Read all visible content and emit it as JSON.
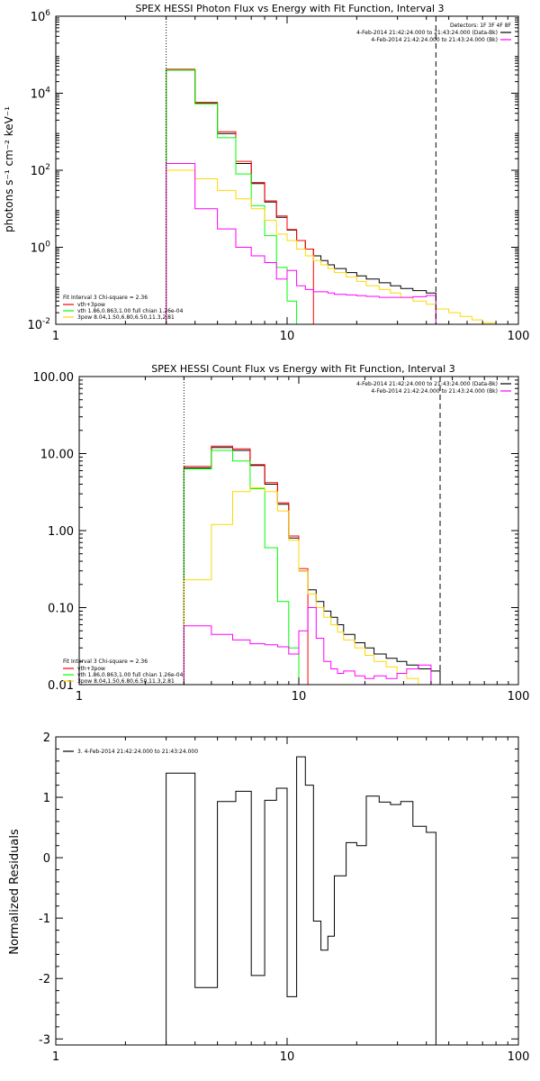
{
  "chart_data": [
    {
      "type": "line",
      "title": "SPEX HESSI Photon Flux vs Energy with Fit Function, Interval 3",
      "ylabel": "photons s⁻¹ cm⁻² keV⁻¹",
      "xlabel": "",
      "xscale": "log",
      "yscale": "log",
      "xlim": [
        1,
        100
      ],
      "ylim": [
        0.01,
        1000000
      ],
      "x_ticks": [
        "1",
        "10",
        "100"
      ],
      "y_ticks": [
        {
          "v": 0.01,
          "base": "10",
          "exp": "-2"
        },
        {
          "v": 1,
          "base": "10",
          "exp": "0"
        },
        {
          "v": 100,
          "base": "10",
          "exp": "2"
        },
        {
          "v": 10000,
          "base": "10",
          "exp": "4"
        },
        {
          "v": 1000000,
          "base": "10",
          "exp": "6"
        }
      ],
      "vlines": [
        {
          "x": 3,
          "style": "dotted"
        },
        {
          "x": 44,
          "style": "dashed"
        }
      ],
      "legend_topright": {
        "header": "Detectors: 1F 3F 4F 8F",
        "entries": [
          {
            "label": "4-Feb-2014 21:42:24.000 to 21:43:24.000 (Data-Bk)",
            "color": "#000000"
          },
          {
            "label": "4-Feb-2014 21:42:24.000 to 21:43:24.000 (Bk)",
            "color": "#ff00ff"
          }
        ]
      },
      "legend_bottomleft": {
        "header": "Fit Interval 3   Chi-square = 2.36",
        "entries": [
          {
            "label": "vth+3pow",
            "color": "#ff0000"
          },
          {
            "label": "vth 1.86,0.863,1.00  full chian 1.26e-04",
            "color": "#00ff00"
          },
          {
            "label": "3pow 8.04,1.50,6.80,6.50,11.3,2.81",
            "color": "#ffd700"
          }
        ]
      },
      "edges": [
        3,
        4,
        5,
        6,
        7,
        8,
        9,
        10,
        11,
        12,
        13,
        14,
        15,
        16,
        18,
        20,
        22,
        25,
        28,
        31,
        35,
        40,
        44,
        50,
        56,
        63,
        70,
        80
      ],
      "series": [
        {
          "name": "Data-Bk",
          "color": "#000000",
          "values": [
            40000,
            5500,
            900,
            150,
            45,
            15,
            6,
            2.8,
            1.5,
            0.9,
            0.6,
            0.45,
            0.35,
            0.28,
            0.22,
            0.18,
            0.15,
            0.12,
            0.1,
            0.085,
            0.075,
            0.065
          ]
        },
        {
          "name": "vth+3pow",
          "color": "#ff0000",
          "values": [
            42000,
            5800,
            1000,
            170,
            48,
            16,
            6.5,
            2.9,
            1.5,
            0.9
          ]
        },
        {
          "name": "vth",
          "color": "#00ff00",
          "values": [
            40000,
            5300,
            700,
            80,
            12,
            2,
            0.3,
            0.04
          ]
        },
        {
          "name": "3pow",
          "color": "#ffd700",
          "values": [
            100,
            60,
            30,
            18,
            10,
            5,
            2.2,
            1.5,
            0.9,
            0.6,
            0.45,
            0.35,
            0.28,
            0.22,
            0.17,
            0.13,
            0.1,
            0.08,
            0.065,
            0.05,
            0.04,
            0.033,
            0.025,
            0.02,
            0.016,
            0.013,
            0.011
          ]
        },
        {
          "name": "Bk",
          "color": "#ff00ff",
          "values": [
            150,
            10,
            3,
            1,
            0.6,
            0.4,
            0.15,
            0.25,
            0.1,
            0.08,
            0.07,
            0.07,
            0.065,
            0.06,
            0.058,
            0.055,
            0.053,
            0.05,
            0.05,
            0.05,
            0.052,
            0.056
          ]
        }
      ]
    },
    {
      "type": "line",
      "title": "SPEX HESSI Count Flux vs Energy with Fit Function, Interval 3",
      "ylabel": "",
      "xlabel": "",
      "xscale": "log",
      "yscale": "log",
      "xlim": [
        1,
        100
      ],
      "ylim": [
        0.01,
        100
      ],
      "x_ticks": [
        "1",
        "10",
        "100"
      ],
      "y_ticks": [
        {
          "v": 0.01,
          "label": "0.01"
        },
        {
          "v": 0.1,
          "label": "0.10"
        },
        {
          "v": 1,
          "label": "1.00"
        },
        {
          "v": 10,
          "label": "10.00"
        },
        {
          "v": 100,
          "label": "100.00"
        }
      ],
      "vlines": [
        {
          "x": 3,
          "style": "dotted"
        },
        {
          "x": 44,
          "style": "dashed"
        }
      ],
      "legend_topright": {
        "header": "",
        "entries": [
          {
            "label": "4-Feb-2014 21:42:24.000 to 21:43:24.000 (Data-Bk)",
            "color": "#000000"
          },
          {
            "label": "4-Feb-2014 21:42:24.000 to 21:43:24.000 (Bk)",
            "color": "#ff00ff"
          }
        ]
      },
      "legend_bottomleft": {
        "header": "Fit Interval 3   Chi-square = 2.36",
        "entries": [
          {
            "label": "vth+3pow",
            "color": "#ff0000"
          },
          {
            "label": "vth 1.86,0.863,1.00  full chian 1.26e-04",
            "color": "#00ff00"
          },
          {
            "label": "3pow 8.04,1.50,6.80,6.50,11.3,2.81",
            "color": "#ffd700"
          }
        ]
      },
      "edges": [
        3,
        4,
        5,
        6,
        7,
        8,
        9,
        10,
        11,
        12,
        13,
        14,
        15,
        16,
        18,
        20,
        22,
        25,
        28,
        31,
        35,
        40,
        44,
        50
      ],
      "series": [
        {
          "name": "Data-Bk",
          "color": "#000000",
          "values": [
            6.5,
            12,
            11,
            7,
            4,
            2.2,
            0.8,
            0.3,
            0.17,
            0.12,
            0.09,
            0.075,
            0.06,
            0.045,
            0.035,
            0.03,
            0.025,
            0.022,
            0.02,
            0.018,
            0.016,
            0.015
          ]
        },
        {
          "name": "vth+3pow",
          "color": "#ff0000",
          "values": [
            6.8,
            12.5,
            11.5,
            7.2,
            4.2,
            2.3,
            0.85,
            0.32
          ]
        },
        {
          "name": "vth",
          "color": "#00ff00",
          "values": [
            6.3,
            11,
            8,
            3.5,
            0.6,
            0.12,
            0.03,
            0.008
          ]
        },
        {
          "name": "3pow",
          "color": "#ffd700",
          "values": [
            0.23,
            1.2,
            3.2,
            3.6,
            3.2,
            1.8,
            0.75,
            0.3,
            0.15,
            0.1,
            0.075,
            0.06,
            0.048,
            0.038,
            0.03,
            0.024,
            0.02,
            0.017,
            0.014,
            0.012,
            0.01,
            0.009,
            0.008
          ]
        },
        {
          "name": "Bk",
          "color": "#ff00ff",
          "values": [
            0.058,
            0.045,
            0.038,
            0.034,
            0.033,
            0.031,
            0.025,
            0.05,
            0.1,
            0.04,
            0.02,
            0.016,
            0.014,
            0.015,
            0.013,
            0.012,
            0.013,
            0.012,
            0.014,
            0.016,
            0.018
          ]
        }
      ]
    },
    {
      "type": "line",
      "title": "",
      "ylabel": "Normalized Residuals",
      "xlabel": "",
      "xscale": "log",
      "yscale": "linear",
      "xlim": [
        1,
        100
      ],
      "ylim": [
        -3.1,
        2
      ],
      "x_ticks": [
        "1",
        "10",
        "100"
      ],
      "y_ticks": [
        {
          "v": -3,
          "label": "-3"
        },
        {
          "v": -2,
          "label": "-2"
        },
        {
          "v": -1,
          "label": "-1"
        },
        {
          "v": 0,
          "label": "0"
        },
        {
          "v": 1,
          "label": "1"
        },
        {
          "v": 2,
          "label": "2"
        }
      ],
      "legend": {
        "entries": [
          {
            "label": "3.  4-Feb-2014 21:42:24.000 to 21:43:24.000",
            "color": "#000000"
          }
        ]
      },
      "edges": [
        3,
        4,
        5,
        6,
        7,
        8,
        9,
        10,
        11,
        12,
        13,
        14,
        15,
        16,
        18,
        20,
        22,
        25,
        28,
        31,
        35,
        40,
        44
      ],
      "series": [
        {
          "name": "3.  4-Feb-2014 21:42:24.000 to 21:43:24.000",
          "color": "#000000",
          "values": [
            1.4,
            -2.15,
            0.93,
            1.1,
            -1.95,
            0.95,
            1.15,
            -2.3,
            1.67,
            1.2,
            -1.05,
            -1.53,
            -1.3,
            -0.3,
            0.25,
            0.2,
            1.02,
            0.92,
            0.88,
            0.93,
            0.52,
            0.42
          ]
        }
      ]
    }
  ]
}
